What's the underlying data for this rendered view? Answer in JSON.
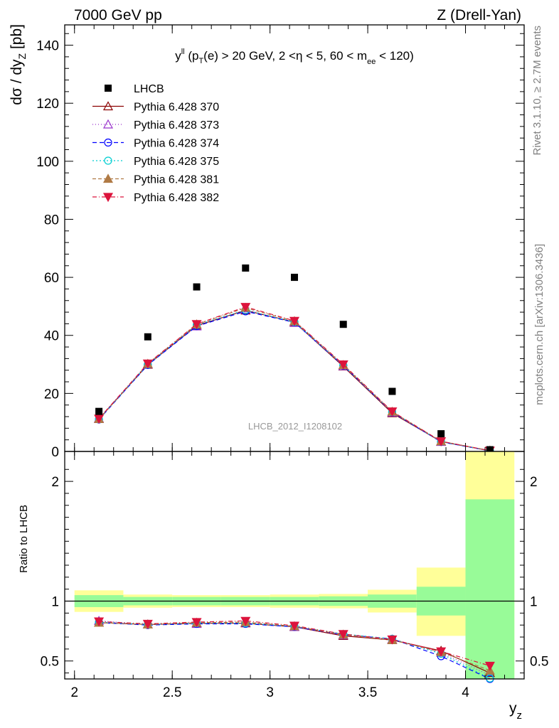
{
  "header": {
    "left": "7000 GeV pp",
    "right": "Z (Drell-Yan)"
  },
  "side_labels": {
    "rivet": "Rivet 3.1.10, ≥ 2.7M events",
    "mcplots": "mcplots.cern.ch [arXiv:1306.3436]"
  },
  "chart_data": [
    {
      "type": "scatter",
      "title": "yᴸᴸ (pₜ(e) > 20 GeV, 2 <η < 5, 60 < mₑₑ < 120)",
      "title_parts": {
        "y": "y",
        "y_sup": "ll",
        "open": " (p",
        "pt_sub": "T",
        "mid": "(e) > 20 GeV, 2 <η < 5, 60 < m",
        "m_sub": "ee",
        "close": " < 120)"
      },
      "ylabel": "dσ / dy",
      "ylabel_sub": "Z",
      "ylabel_unit": " [pb]",
      "watermark": "LHCB_2012_I1208102",
      "xlim": [
        1.95,
        4.3
      ],
      "ylim": [
        0,
        147
      ],
      "yticks": [
        0,
        20,
        40,
        60,
        80,
        100,
        120,
        140
      ],
      "ytick_labels": [
        "0",
        "20",
        "40",
        "60",
        "80",
        "100",
        "120",
        "140"
      ],
      "legend_placement": "top-left",
      "data": {
        "name": "LHCB",
        "x": [
          2.125,
          2.375,
          2.625,
          2.875,
          3.125,
          3.375,
          3.625,
          3.875,
          4.125
        ],
        "y": [
          13.8,
          39.5,
          56.7,
          63.2,
          60.0,
          43.8,
          20.7,
          6.1,
          0.6
        ]
      },
      "series": [
        {
          "name": "Pythia 6.428 370",
          "color": "#8b0000",
          "marker": "triangle-open",
          "dash": "",
          "x": [
            2.125,
            2.375,
            2.625,
            2.875,
            3.125,
            3.375,
            3.625,
            3.875,
            4.125
          ],
          "y": [
            11.2,
            29.9,
            43.4,
            48.6,
            44.6,
            29.3,
            13.2,
            3.4,
            0.24
          ]
        },
        {
          "name": "Pythia 6.428 373",
          "color": "#9932cc",
          "marker": "triangle-open",
          "dash": "1,3",
          "x": [
            2.125,
            2.375,
            2.625,
            2.875,
            3.125,
            3.375,
            3.625,
            3.875,
            4.125
          ],
          "y": [
            11.4,
            30.1,
            43.1,
            48.9,
            44.3,
            29.4,
            13.4,
            3.3,
            0.21
          ]
        },
        {
          "name": "Pythia 6.428 374",
          "color": "#0000ff",
          "marker": "circle-open",
          "dash": "6,4",
          "x": [
            2.125,
            2.375,
            2.625,
            2.875,
            3.125,
            3.375,
            3.625,
            3.875,
            4.125
          ],
          "y": [
            11.0,
            29.8,
            43.2,
            48.3,
            44.5,
            29.6,
            13.5,
            3.3,
            0.2
          ]
        },
        {
          "name": "Pythia 6.428 375",
          "color": "#00ced1",
          "marker": "circle-open",
          "dash": "2,3",
          "x": [
            2.125,
            2.375,
            2.625,
            2.875,
            3.125,
            3.375,
            3.625,
            3.875,
            4.125
          ],
          "y": [
            11.1,
            30.0,
            43.6,
            48.7,
            44.6,
            29.7,
            13.6,
            3.4,
            0.2
          ]
        },
        {
          "name": "Pythia 6.428 381",
          "color": "#b07a45",
          "marker": "triangle-filled",
          "dash": "5,3",
          "x": [
            2.125,
            2.375,
            2.625,
            2.875,
            3.125,
            3.375,
            3.625,
            3.875,
            4.125
          ],
          "y": [
            11.2,
            30.2,
            43.8,
            49.5,
            44.9,
            29.8,
            13.7,
            3.5,
            0.26
          ]
        },
        {
          "name": "Pythia 6.428 382",
          "color": "#dc143c",
          "marker": "triangle-down-filled",
          "dash": "6,3,1,3",
          "x": [
            2.125,
            2.375,
            2.625,
            2.875,
            3.125,
            3.375,
            3.625,
            3.875,
            4.125
          ],
          "y": [
            11.3,
            30.3,
            43.9,
            49.8,
            45.0,
            30.0,
            13.8,
            3.5,
            0.28
          ]
        }
      ]
    },
    {
      "type": "line",
      "ylabel": "Ratio to LHCB",
      "xlabel": "y",
      "xlabel_sub": "z",
      "xlim": [
        1.95,
        4.3
      ],
      "ylim": [
        0.35,
        2.25
      ],
      "xticks": [
        2,
        2.5,
        3,
        3.5,
        4
      ],
      "xtick_labels": [
        "2",
        "2.5",
        "3",
        "3.5",
        "4"
      ],
      "yticks": [
        0.5,
        1,
        2
      ],
      "ytick_labels": [
        "0.5",
        "1",
        "2"
      ],
      "bands": {
        "bin_edges": [
          2.0,
          2.25,
          2.5,
          2.75,
          3.0,
          3.25,
          3.5,
          3.75,
          4.0,
          4.25
        ],
        "stat_lo": [
          0.95,
          0.965,
          0.965,
          0.965,
          0.965,
          0.96,
          0.945,
          0.88,
          0.35
        ],
        "stat_hi": [
          1.05,
          1.035,
          1.035,
          1.035,
          1.035,
          1.04,
          1.055,
          1.12,
          1.85
        ],
        "total_lo": [
          0.91,
          0.945,
          0.95,
          0.95,
          0.945,
          0.94,
          0.905,
          0.71,
          0.35
        ],
        "total_hi": [
          1.09,
          1.055,
          1.05,
          1.05,
          1.055,
          1.06,
          1.095,
          1.28,
          2.25
        ]
      },
      "series": [
        {
          "name": "Pythia 6.428 370",
          "color": "#8b0000",
          "marker": "triangle-open",
          "dash": "",
          "y": [
            0.82,
            0.805,
            0.815,
            0.815,
            0.785,
            0.71,
            0.675,
            0.585,
            0.4
          ]
        },
        {
          "name": "Pythia 6.428 373",
          "color": "#9932cc",
          "marker": "triangle-open",
          "dash": "1,3",
          "y": [
            0.835,
            0.805,
            0.81,
            0.82,
            0.785,
            0.715,
            0.68,
            0.57,
            0.38
          ]
        },
        {
          "name": "Pythia 6.428 374",
          "color": "#0000ff",
          "marker": "circle-open",
          "dash": "6,4",
          "y": [
            0.82,
            0.8,
            0.81,
            0.81,
            0.785,
            0.72,
            0.685,
            0.54,
            0.35
          ]
        },
        {
          "name": "Pythia 6.428 375",
          "color": "#00ced1",
          "marker": "circle-open",
          "dash": "2,3",
          "y": [
            0.825,
            0.805,
            0.815,
            0.815,
            0.79,
            0.725,
            0.685,
            0.56,
            0.355
          ]
        },
        {
          "name": "Pythia 6.428 381",
          "color": "#b07a45",
          "marker": "triangle-filled",
          "dash": "5,3",
          "y": [
            0.82,
            0.805,
            0.82,
            0.825,
            0.79,
            0.72,
            0.675,
            0.575,
            0.42
          ]
        },
        {
          "name": "Pythia 6.428 382",
          "color": "#dc143c",
          "marker": "triangle-down-filled",
          "dash": "6,3,1,3",
          "y": [
            0.83,
            0.81,
            0.825,
            0.835,
            0.795,
            0.725,
            0.68,
            0.58,
            0.46
          ]
        }
      ]
    }
  ]
}
